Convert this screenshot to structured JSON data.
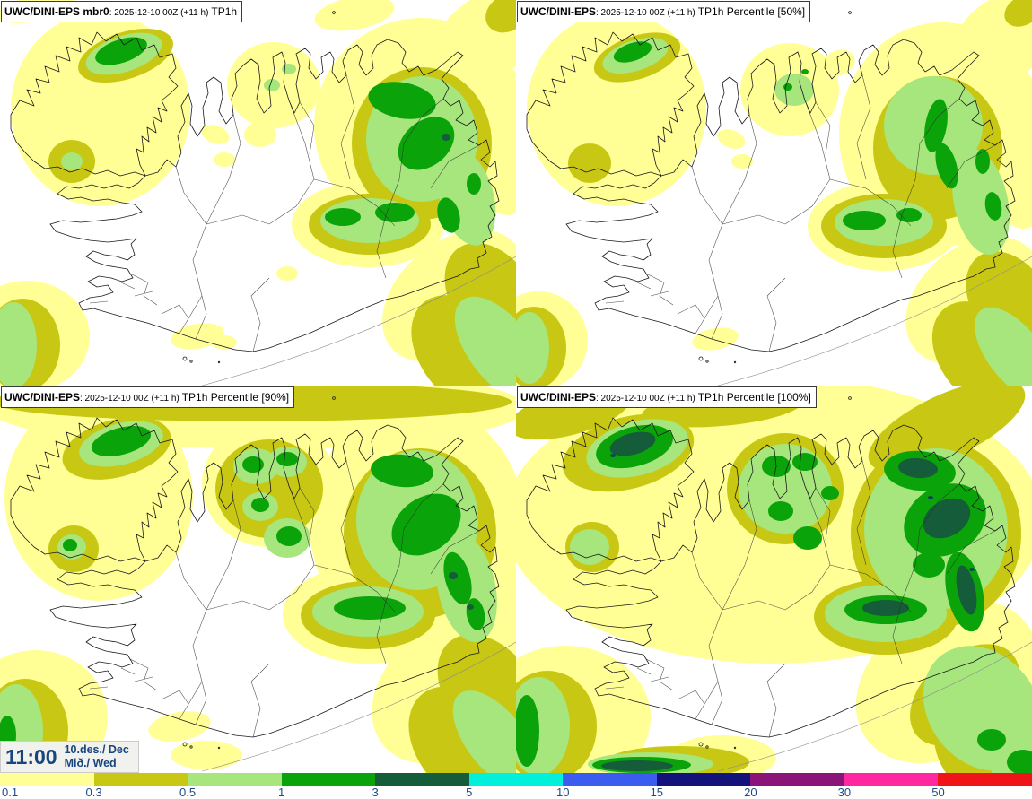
{
  "panels": [
    {
      "key": "member",
      "model": "UWC/DINI-EPS mbr0",
      "run": ": 2025-12-10 00Z (+11 h)",
      "param": "TP1h"
    },
    {
      "key": "p50",
      "model": "UWC/DINI-EPS",
      "run": ": 2025-12-10 00Z (+11 h)",
      "param": "TP1h Percentile [50%]"
    },
    {
      "key": "p90",
      "model": "UWC/DINI-EPS",
      "run": ": 2025-12-10 00Z (+11 h)",
      "param": "TP1h Percentile [90%]"
    },
    {
      "key": "p100",
      "model": "UWC/DINI-EPS",
      "run": ": 2025-12-10 00Z (+11 h)",
      "param": "TP1h Percentile [100%]"
    }
  ],
  "timebox": {
    "time": "11:00",
    "date": "10.des./ Dec",
    "day": "Mið./ Wed"
  },
  "colorbar": {
    "segments": [
      {
        "from": "0.1",
        "color": "#FFFF96"
      },
      {
        "from": "0.3",
        "color": "#C8C814"
      },
      {
        "from": "0.5",
        "color": "#A6E67D"
      },
      {
        "from": "1",
        "color": "#0AA30A"
      },
      {
        "from": "3",
        "color": "#155C3B"
      },
      {
        "from": "5",
        "color": "#00F0DC"
      },
      {
        "from": "10",
        "color": "#3C5CF0"
      },
      {
        "from": "15",
        "color": "#12127A"
      },
      {
        "from": "20",
        "color": "#8A1478"
      },
      {
        "from": "30",
        "color": "#FF28A0"
      },
      {
        "from": "50",
        "color": "#F01418"
      }
    ],
    "label_color": "#1d4a86"
  }
}
